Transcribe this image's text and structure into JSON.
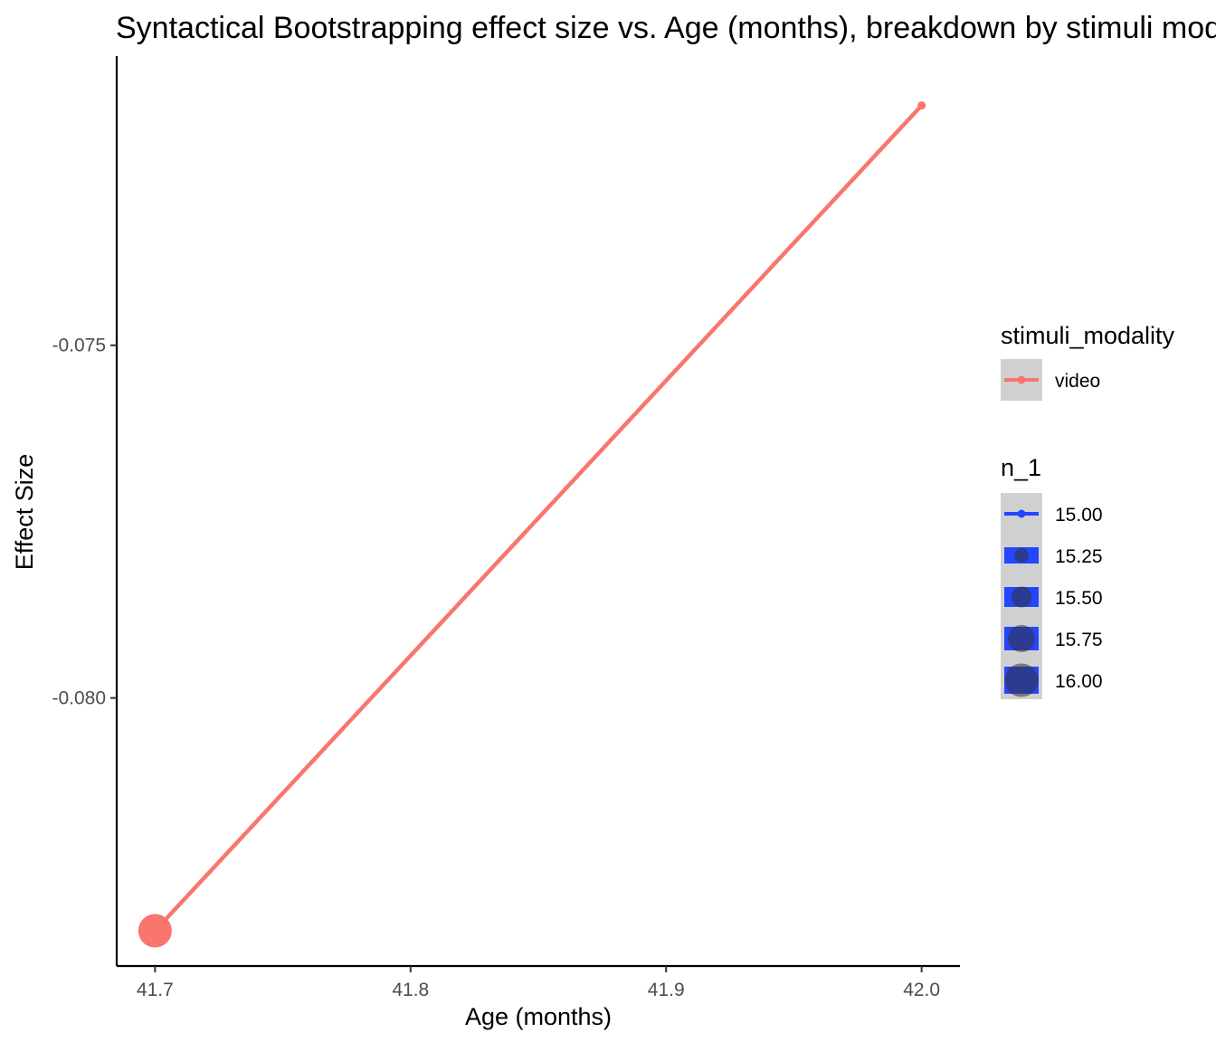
{
  "chart_data": {
    "type": "line",
    "title": "Syntactical Bootstrapping effect size vs. Age (months), breakdown by stimuli modality",
    "xlabel": "Age (months)",
    "ylabel": "Effect Size",
    "xlim": [
      41.685,
      42.015
    ],
    "ylim": [
      -0.0838,
      -0.0709
    ],
    "x_ticks": [
      "41.7",
      "41.8",
      "41.9",
      "42.0"
    ],
    "x_tick_values": [
      41.7,
      41.8,
      41.9,
      42.0
    ],
    "y_ticks": [
      "-0.075",
      "-0.080"
    ],
    "y_tick_values": [
      -0.075,
      -0.08
    ],
    "grid": false,
    "series": [
      {
        "name": "video",
        "color": "#F8766D",
        "points": [
          {
            "x": 41.7,
            "y": -0.0833,
            "n_1": 16
          },
          {
            "x": 42.0,
            "y": -0.0716,
            "n_1": 15
          }
        ]
      }
    ],
    "legend": {
      "position": "right",
      "color_title": "stimuli_modality",
      "color_entries": [
        "video"
      ],
      "size_title": "n_1",
      "size_entries": [
        "15.00",
        "15.25",
        "15.50",
        "15.75",
        "16.00"
      ],
      "size_values": [
        15.0,
        15.25,
        15.5,
        15.75,
        16.0
      ],
      "size_key_color": "#2446FF"
    }
  }
}
